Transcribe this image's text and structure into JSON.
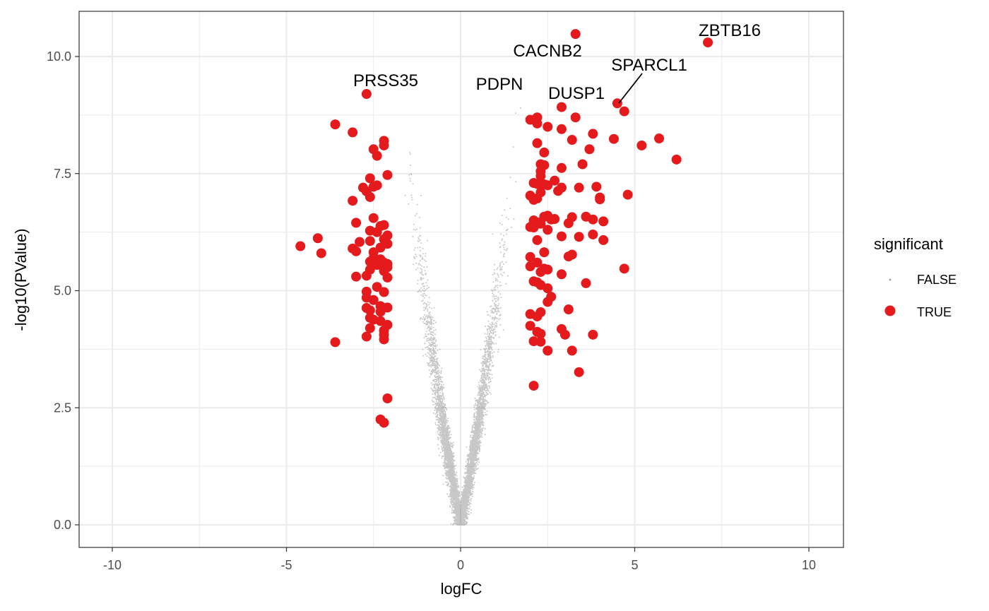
{
  "chart_data": {
    "type": "scatter",
    "title": "",
    "xlabel": "logFC",
    "ylabel": "-log10(PValue)",
    "xlim": [
      -10.0,
      10.0
    ],
    "ylim": [
      0.0,
      10.5
    ],
    "x_ticks": [
      "-10",
      "-5",
      "0",
      "5",
      "10"
    ],
    "y_ticks": [
      "0.0",
      "2.5",
      "5.0",
      "7.5",
      "10.0"
    ],
    "grid": true,
    "legend": {
      "title": "significant",
      "position": "right",
      "entries": [
        {
          "label": "FALSE",
          "color": "#000000"
        },
        {
          "label": "TRUE",
          "color": "#E41A1C"
        }
      ]
    },
    "background_points": {
      "label": "FALSE",
      "color": "#000000",
      "shape": "volcano cloud of non-significant genes",
      "x_range": [
        -2.0,
        2.2
      ],
      "y_range": [
        0.0,
        8.9
      ]
    },
    "series": [
      {
        "name": "TRUE",
        "color": "#E41A1C",
        "points": [
          [
            3.3,
            10.48
          ],
          [
            7.1,
            10.3
          ],
          [
            -2.7,
            9.2
          ],
          [
            2.9,
            8.92
          ],
          [
            4.5,
            9.0
          ],
          [
            4.7,
            8.83
          ],
          [
            2.2,
            8.7
          ],
          [
            3.3,
            8.7
          ],
          [
            2.0,
            8.65
          ],
          [
            2.2,
            8.57
          ],
          [
            2.5,
            8.5
          ],
          [
            2.9,
            8.45
          ],
          [
            -3.6,
            8.55
          ],
          [
            -3.1,
            8.38
          ],
          [
            3.8,
            8.35
          ],
          [
            -2.2,
            8.2
          ],
          [
            -2.2,
            8.1
          ],
          [
            2.2,
            8.15
          ],
          [
            3.2,
            8.22
          ],
          [
            4.4,
            8.24
          ],
          [
            5.7,
            8.25
          ],
          [
            5.2,
            8.1
          ],
          [
            -2.5,
            8.02
          ],
          [
            3.7,
            8.02
          ],
          [
            2.4,
            7.95
          ],
          [
            -2.4,
            7.88
          ],
          [
            6.2,
            7.8
          ],
          [
            2.3,
            7.7
          ],
          [
            2.4,
            7.68
          ],
          [
            3.5,
            7.7
          ],
          [
            2.9,
            7.62
          ],
          [
            2.3,
            7.55
          ],
          [
            -2.1,
            7.47
          ],
          [
            2.3,
            7.45
          ],
          [
            -2.6,
            7.4
          ],
          [
            2.7,
            7.35
          ],
          [
            2.1,
            7.3
          ],
          [
            2.2,
            7.28
          ],
          [
            2.4,
            7.27
          ],
          [
            -2.4,
            7.25
          ],
          [
            -2.5,
            7.22
          ],
          [
            2.5,
            7.25
          ],
          [
            -2.8,
            7.2
          ],
          [
            3.9,
            7.22
          ],
          [
            2.9,
            7.2
          ],
          [
            3.4,
            7.2
          ],
          [
            -2.7,
            7.12
          ],
          [
            2.8,
            7.13
          ],
          [
            2.3,
            7.1
          ],
          [
            2.0,
            7.03
          ],
          [
            4.8,
            7.05
          ],
          [
            -2.6,
            7.0
          ],
          [
            4.0,
            6.99
          ],
          [
            4.0,
            6.95
          ],
          [
            2.2,
            6.97
          ],
          [
            2.1,
            6.94
          ],
          [
            -3.1,
            6.92
          ],
          [
            2.5,
            6.6
          ],
          [
            2.4,
            6.58
          ],
          [
            -2.5,
            6.55
          ],
          [
            3.2,
            6.57
          ],
          [
            3.6,
            6.58
          ],
          [
            2.6,
            6.52
          ],
          [
            2.7,
            6.53
          ],
          [
            3.8,
            6.52
          ],
          [
            4.1,
            6.48
          ],
          [
            2.1,
            6.5
          ],
          [
            2.2,
            6.46
          ],
          [
            -3.0,
            6.45
          ],
          [
            2.3,
            6.43
          ],
          [
            3.1,
            6.44
          ],
          [
            -2.2,
            6.4
          ],
          [
            -2.3,
            6.38
          ],
          [
            2.0,
            6.36
          ],
          [
            2.1,
            6.35
          ],
          [
            2.5,
            6.3
          ],
          [
            -2.6,
            6.28
          ],
          [
            -2.4,
            6.25
          ],
          [
            -2.1,
            6.18
          ],
          [
            3.8,
            6.2
          ],
          [
            2.9,
            6.16
          ],
          [
            3.4,
            6.15
          ],
          [
            -4.1,
            6.12
          ],
          [
            -2.2,
            6.1
          ],
          [
            2.2,
            6.08
          ],
          [
            4.1,
            6.08
          ],
          [
            -2.6,
            6.06
          ],
          [
            -2.9,
            6.04
          ],
          [
            -2.1,
            6.0
          ],
          [
            -4.6,
            5.95
          ],
          [
            -2.3,
            5.92
          ],
          [
            -3.1,
            5.9
          ],
          [
            -3.0,
            5.84
          ],
          [
            -2.5,
            5.82
          ],
          [
            2.4,
            5.82
          ],
          [
            -4.0,
            5.8
          ],
          [
            3.2,
            5.77
          ],
          [
            3.1,
            5.73
          ],
          [
            2.0,
            5.72
          ],
          [
            -2.5,
            5.7
          ],
          [
            -2.3,
            5.67
          ],
          [
            -2.6,
            5.62
          ],
          [
            -2.2,
            5.6
          ],
          [
            -2.1,
            5.57
          ],
          [
            2.2,
            5.6
          ],
          [
            -2.4,
            5.55
          ],
          [
            2.0,
            5.52
          ],
          [
            -2.1,
            5.5
          ],
          [
            4.7,
            5.47
          ],
          [
            2.4,
            5.47
          ],
          [
            -2.6,
            5.45
          ],
          [
            2.5,
            5.45
          ],
          [
            -2.2,
            5.42
          ],
          [
            2.3,
            5.4
          ],
          [
            2.9,
            5.35
          ],
          [
            -2.7,
            5.32
          ],
          [
            -3.0,
            5.3
          ],
          [
            -2.1,
            5.28
          ],
          [
            2.1,
            5.2
          ],
          [
            2.2,
            5.18
          ],
          [
            3.6,
            5.16
          ],
          [
            2.3,
            5.12
          ],
          [
            -2.4,
            5.08
          ],
          [
            2.5,
            5.05
          ],
          [
            -2.7,
            4.98
          ],
          [
            -2.2,
            4.97
          ],
          [
            2.6,
            4.87
          ],
          [
            -2.7,
            4.85
          ],
          [
            -2.5,
            4.8
          ],
          [
            2.5,
            4.76
          ],
          [
            -2.3,
            4.67
          ],
          [
            -2.1,
            4.64
          ],
          [
            -2.7,
            4.63
          ],
          [
            -2.6,
            4.58
          ],
          [
            3.1,
            4.6
          ],
          [
            -2.3,
            4.55
          ],
          [
            2.3,
            4.54
          ],
          [
            2.0,
            4.5
          ],
          [
            2.2,
            4.45
          ],
          [
            -2.6,
            4.42
          ],
          [
            -2.5,
            4.38
          ],
          [
            -2.3,
            4.35
          ],
          [
            -2.1,
            4.27
          ],
          [
            2.0,
            4.25
          ],
          [
            -2.6,
            4.2
          ],
          [
            2.9,
            4.18
          ],
          [
            -2.2,
            4.15
          ],
          [
            2.2,
            4.12
          ],
          [
            2.3,
            4.08
          ],
          [
            -2.2,
            4.06
          ],
          [
            3.0,
            4.06
          ],
          [
            3.8,
            4.06
          ],
          [
            -2.7,
            4.02
          ],
          [
            -2.2,
            3.96
          ],
          [
            2.1,
            3.92
          ],
          [
            2.3,
            3.91
          ],
          [
            -3.6,
            3.9
          ],
          [
            2.5,
            3.72
          ],
          [
            3.2,
            3.72
          ],
          [
            3.4,
            3.26
          ],
          [
            2.1,
            2.97
          ],
          [
            -2.1,
            2.7
          ],
          [
            -2.3,
            2.25
          ],
          [
            -2.2,
            2.18
          ]
        ]
      }
    ],
    "labels": [
      {
        "text": "ZBTB16",
        "x": 7.1,
        "y": 10.3
      },
      {
        "text": "CACNB2",
        "x": 3.3,
        "y": 10.48
      },
      {
        "text": "SPARCL1",
        "x": 4.5,
        "y": 9.0
      },
      {
        "text": "PRSS35",
        "x": -2.7,
        "y": 9.2
      },
      {
        "text": "PDPN",
        "x": 1.2,
        "y": 9.1
      },
      {
        "text": "DUSP1",
        "x": 2.9,
        "y": 8.92
      }
    ]
  }
}
